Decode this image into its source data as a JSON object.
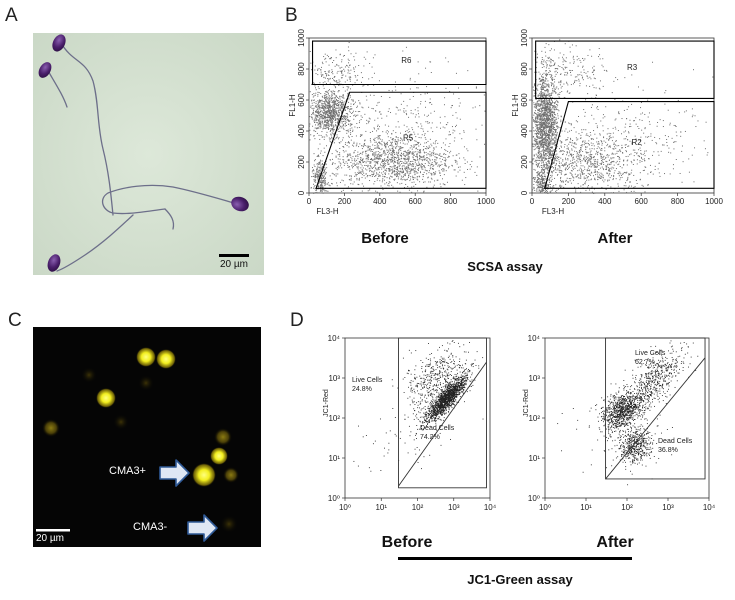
{
  "figure": {
    "panels": {
      "a": "A",
      "b": "B",
      "c": "C",
      "d": "D"
    },
    "scale_bar_a": "20 µm",
    "scale_bar_c": "20 µm",
    "cma3_plus": "CMA3+",
    "cma3_minus": "CMA3-",
    "scsa_before": "Before",
    "scsa_after": "After",
    "scsa_title": "SCSA assay",
    "jc1_before": "Before",
    "jc1_after": "After",
    "jc1_title": "JC1-Green assay",
    "colors": {
      "photo_bg": "#d3e0cf",
      "sperm_head": "#4a1f6b",
      "fluor_bg": "#050505",
      "fluor_yellow": "#f2ee1e",
      "arrow_blue": "#2f5a97",
      "scatter_gray": "#777777"
    },
    "icons": [
      "arrow-right-icon",
      "arrow-right-icon"
    ]
  },
  "chart_data": [
    {
      "type": "scatter",
      "panel": "B-before",
      "xlabel": "FL3-H",
      "ylabel": "FL1-H",
      "xlim": [
        0,
        1000
      ],
      "ylim": [
        0,
        1000
      ],
      "xticks": [
        "0",
        "200",
        "400",
        "600",
        "800",
        "1000"
      ],
      "yticks": [
        "0",
        "200",
        "400",
        "600",
        "800",
        "1000"
      ],
      "gates": [
        {
          "name": "R6",
          "polygon": [
            [
              20,
              700
            ],
            [
              1000,
              700
            ],
            [
              1000,
              980
            ],
            [
              20,
              980
            ]
          ]
        },
        {
          "name": "R5",
          "polygon": [
            [
              40,
              30
            ],
            [
              230,
              650
            ],
            [
              1000,
              650
            ],
            [
              1000,
              30
            ]
          ]
        }
      ],
      "clusters": [
        {
          "cx": 120,
          "cy": 520,
          "sx": 60,
          "sy": 70,
          "n": 900
        },
        {
          "cx": 470,
          "cy": 210,
          "sx": 170,
          "sy": 90,
          "n": 1300
        },
        {
          "cx": 60,
          "cy": 90,
          "sx": 25,
          "sy": 60,
          "n": 260
        },
        {
          "cx": 150,
          "cy": 780,
          "sx": 90,
          "sy": 70,
          "n": 180
        },
        {
          "cx": 500,
          "cy": 450,
          "sx": 260,
          "sy": 180,
          "n": 350
        }
      ],
      "caption": "Before"
    },
    {
      "type": "scatter",
      "panel": "B-after",
      "xlabel": "FL3-H",
      "ylabel": "FL1-H",
      "xlim": [
        0,
        1000
      ],
      "ylim": [
        0,
        1000
      ],
      "xticks": [
        "0",
        "200",
        "400",
        "600",
        "800",
        "1000"
      ],
      "yticks": [
        "0",
        "200",
        "400",
        "600",
        "800",
        "1000"
      ],
      "gates": [
        {
          "name": "R3",
          "polygon": [
            [
              20,
              610
            ],
            [
              1000,
              610
            ],
            [
              1000,
              980
            ],
            [
              20,
              980
            ]
          ]
        },
        {
          "name": "R2",
          "polygon": [
            [
              70,
              30
            ],
            [
              200,
              590
            ],
            [
              1000,
              590
            ],
            [
              1000,
              30
            ]
          ]
        }
      ],
      "clusters": [
        {
          "cx": 70,
          "cy": 450,
          "sx": 35,
          "sy": 170,
          "n": 1600
        },
        {
          "cx": 300,
          "cy": 200,
          "sx": 170,
          "sy": 110,
          "n": 900
        },
        {
          "cx": 60,
          "cy": 60,
          "sx": 25,
          "sy": 40,
          "n": 200
        },
        {
          "cx": 200,
          "cy": 780,
          "sx": 110,
          "sy": 90,
          "n": 200
        },
        {
          "cx": 500,
          "cy": 350,
          "sx": 260,
          "sy": 180,
          "n": 300
        }
      ],
      "caption": "After"
    },
    {
      "type": "scatter",
      "panel": "D-before",
      "xlabel": "",
      "ylabel": "JC1-Red",
      "xscale": "log",
      "yscale": "log",
      "xlim": [
        1,
        10000
      ],
      "ylim": [
        1,
        10000
      ],
      "xticks": [
        "10⁰",
        "10¹",
        "10²",
        "10³",
        "10⁴"
      ],
      "yticks": [
        "10⁰",
        "10¹",
        "10²",
        "10³",
        "10⁴"
      ],
      "gates": [
        {
          "name": "outer",
          "polygon": [
            [
              30,
              1.8
            ],
            [
              30,
              10000
            ],
            [
              8000,
              10000
            ],
            [
              8000,
              1.8
            ]
          ]
        },
        {
          "name": "diagonal",
          "line": [
            [
              30,
              2
            ],
            [
              8000,
              2500
            ]
          ]
        }
      ],
      "regions": [
        {
          "label": "Live Cells",
          "percent": "24.8%"
        },
        {
          "label": "Dead Cells",
          "percent": "74.2%"
        }
      ],
      "clusters": [
        {
          "lx": 2.8,
          "ly": 2.5,
          "s": 0.28,
          "corr": 0.85,
          "n": 1500
        },
        {
          "lx": 2.5,
          "ly": 3.0,
          "s": 0.45,
          "corr": 0.5,
          "n": 450
        },
        {
          "lx": 1.5,
          "ly": 1.5,
          "s": 0.6,
          "corr": 0.0,
          "n": 60
        }
      ],
      "caption": "Before"
    },
    {
      "type": "scatter",
      "panel": "D-after",
      "xlabel": "",
      "ylabel": "JC1-Red",
      "xscale": "log",
      "yscale": "log",
      "xlim": [
        1,
        10000
      ],
      "ylim": [
        1,
        10000
      ],
      "xticks": [
        "10⁰",
        "10¹",
        "10²",
        "10³",
        "10⁴"
      ],
      "yticks": [
        "10⁰",
        "10¹",
        "10²",
        "10³",
        "10⁴"
      ],
      "gates": [
        {
          "name": "outer",
          "polygon": [
            [
              30,
              3
            ],
            [
              30,
              10000
            ],
            [
              8000,
              10000
            ],
            [
              8000,
              3
            ]
          ]
        },
        {
          "name": "diagonal",
          "line": [
            [
              30,
              3
            ],
            [
              8000,
              3200
            ]
          ]
        }
      ],
      "regions": [
        {
          "label": "Live Cells",
          "percent": "62.7%"
        },
        {
          "label": "Dead Cells",
          "percent": "36.8%"
        }
      ],
      "clusters": [
        {
          "lx": 1.9,
          "ly": 2.2,
          "s": 0.25,
          "corr": 0.3,
          "n": 900
        },
        {
          "lx": 2.7,
          "ly": 3.0,
          "s": 0.35,
          "corr": 0.6,
          "n": 500
        },
        {
          "lx": 2.2,
          "ly": 1.3,
          "s": 0.22,
          "corr": 0.2,
          "n": 450
        },
        {
          "lx": 1.6,
          "ly": 1.6,
          "s": 0.6,
          "corr": 0.0,
          "n": 60
        }
      ],
      "caption": "After"
    }
  ]
}
